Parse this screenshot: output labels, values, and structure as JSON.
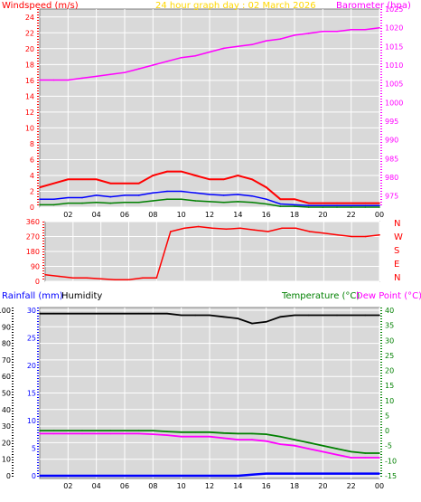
{
  "header": {
    "left_label": "Windspeed (m/s)",
    "center_label": "24 hour graph day : 02 March 2026",
    "right_label": "Barometer (hpa)"
  },
  "hours": [
    "02",
    "04",
    "06",
    "08",
    "10",
    "12",
    "14",
    "16",
    "18",
    "20",
    "22",
    "00"
  ],
  "colors": {
    "wind_red": "#ff0000",
    "wind_blue": "#0000ff",
    "wind_green": "#008000",
    "barometer": "#ff00ff",
    "humidity": "#000000",
    "temperature": "#008000",
    "dewpoint": "#ff00ff",
    "rain": "#0000ff",
    "axis_wind": "#ff0000",
    "axis_baro": "#ff00ff",
    "axis_hum": "#0000ff",
    "axis_temp": "#008000",
    "plot_bg": "#d8d8d8",
    "title_yellow": "#ffd700"
  },
  "chart_data": [
    {
      "type": "line",
      "title": "24 hour graph day : 02 March 2026",
      "ylabel": "Windspeed (m/s)",
      "y2label": "Barometer (hpa)",
      "ylim": [
        0,
        25
      ],
      "y2lim": [
        972,
        1025
      ],
      "yticks": [
        0,
        2,
        4,
        6,
        8,
        10,
        12,
        14,
        16,
        18,
        20,
        22,
        24
      ],
      "y2ticks": [
        975,
        980,
        985,
        990,
        995,
        1000,
        1005,
        1010,
        1015,
        1020,
        1025
      ],
      "x": [
        0,
        1,
        2,
        3,
        4,
        5,
        6,
        7,
        8,
        9,
        10,
        11,
        12,
        13,
        14,
        15,
        16,
        17,
        18,
        19,
        20,
        21,
        22,
        23,
        24
      ],
      "series": [
        {
          "name": "gust",
          "axis": "left",
          "values": [
            2.5,
            3,
            3.5,
            3.5,
            3.5,
            3,
            3,
            3,
            4,
            4.5,
            4.5,
            4,
            3.5,
            3.5,
            4,
            3.5,
            2.5,
            1,
            1,
            0.5,
            0.5,
            0.5,
            0.5,
            0.5,
            0.5
          ]
        },
        {
          "name": "average",
          "axis": "left",
          "values": [
            1,
            1,
            1.2,
            1.2,
            1.5,
            1.3,
            1.5,
            1.5,
            1.8,
            2,
            2,
            1.8,
            1.6,
            1.5,
            1.6,
            1.4,
            1,
            0.4,
            0.3,
            0.2,
            0.2,
            0.2,
            0.2,
            0.2,
            0.2
          ]
        },
        {
          "name": "lull",
          "axis": "left",
          "values": [
            0.3,
            0.3,
            0.5,
            0.5,
            0.6,
            0.5,
            0.6,
            0.6,
            0.8,
            1,
            1,
            0.8,
            0.7,
            0.6,
            0.7,
            0.6,
            0.4,
            0.1,
            0.1,
            0,
            0,
            0,
            0,
            0,
            0
          ]
        },
        {
          "name": "barometer",
          "axis": "right",
          "values": [
            1006,
            1006,
            1006,
            1006.5,
            1007,
            1007.5,
            1008,
            1009,
            1010,
            1011,
            1012,
            1012.5,
            1013.5,
            1014.5,
            1015,
            1015.5,
            1016.5,
            1017,
            1018,
            1018.5,
            1019,
            1019,
            1019.5,
            1019.5,
            1020
          ]
        }
      ]
    },
    {
      "type": "scatter",
      "ylabel_right": [
        "N",
        "W",
        "S",
        "E",
        "N"
      ],
      "ylim": [
        0,
        360
      ],
      "yticks": [
        0,
        90,
        180,
        270,
        360
      ],
      "x": [
        0,
        1,
        2,
        3,
        4,
        5,
        6,
        7,
        8,
        9,
        10,
        11,
        12,
        13,
        14,
        15,
        16,
        17,
        18,
        19,
        20,
        21,
        22,
        23,
        24
      ],
      "values": [
        40,
        30,
        20,
        20,
        15,
        10,
        10,
        20,
        20,
        300,
        320,
        330,
        320,
        315,
        320,
        310,
        300,
        320,
        320,
        300,
        290,
        280,
        270,
        270,
        280
      ]
    },
    {
      "type": "line",
      "ylabel_left_1": "Rainfall (mm)",
      "ylabel_left_2": "Humidity",
      "ylabel_right_1": "Temperature (°C)",
      "ylabel_right_2": "Dew Point (°C)",
      "humidity_ticks": [
        0,
        10,
        20,
        30,
        40,
        50,
        60,
        70,
        80,
        90,
        100
      ],
      "rain_ticks": [
        0,
        5,
        10,
        15,
        20,
        25,
        30
      ],
      "temp_ticks": [
        -15,
        -10,
        -5,
        0,
        5,
        10,
        15,
        20,
        25,
        30,
        35,
        40
      ],
      "x": [
        0,
        1,
        2,
        3,
        4,
        5,
        6,
        7,
        8,
        9,
        10,
        11,
        12,
        13,
        14,
        15,
        16,
        17,
        18,
        19,
        20,
        21,
        22,
        23,
        24
      ],
      "series": [
        {
          "name": "Humidity",
          "axis": "humidity",
          "values": [
            98,
            98,
            98,
            98,
            98,
            98,
            98,
            98,
            98,
            98,
            97,
            97,
            97,
            96,
            95,
            92,
            93,
            96,
            97,
            97,
            97,
            97,
            97,
            97,
            97
          ]
        },
        {
          "name": "Temperature (°C)",
          "axis": "temp",
          "values": [
            0,
            0,
            0,
            0,
            0,
            0,
            0,
            0,
            0,
            -0.3,
            -0.5,
            -0.5,
            -0.5,
            -0.8,
            -1,
            -1,
            -1.2,
            -2,
            -3,
            -4,
            -5,
            -6,
            -7,
            -7.5,
            -7.5
          ]
        },
        {
          "name": "Dew Point (°C)",
          "axis": "temp",
          "values": [
            -1,
            -1,
            -1,
            -1,
            -1,
            -1,
            -1,
            -1,
            -1.2,
            -1.5,
            -2,
            -2,
            -2,
            -2.5,
            -3,
            -3,
            -3.5,
            -4.5,
            -5,
            -6,
            -7,
            -8,
            -9,
            -9,
            -9
          ]
        },
        {
          "name": "Rainfall (mm)",
          "axis": "rain",
          "values": [
            0,
            0,
            0,
            0,
            0,
            0,
            0,
            0,
            0,
            0,
            0,
            0,
            0,
            0,
            0,
            0.2,
            0.4,
            0.4,
            0.4,
            0.4,
            0.4,
            0.4,
            0.4,
            0.4,
            0.4
          ]
        }
      ]
    }
  ]
}
